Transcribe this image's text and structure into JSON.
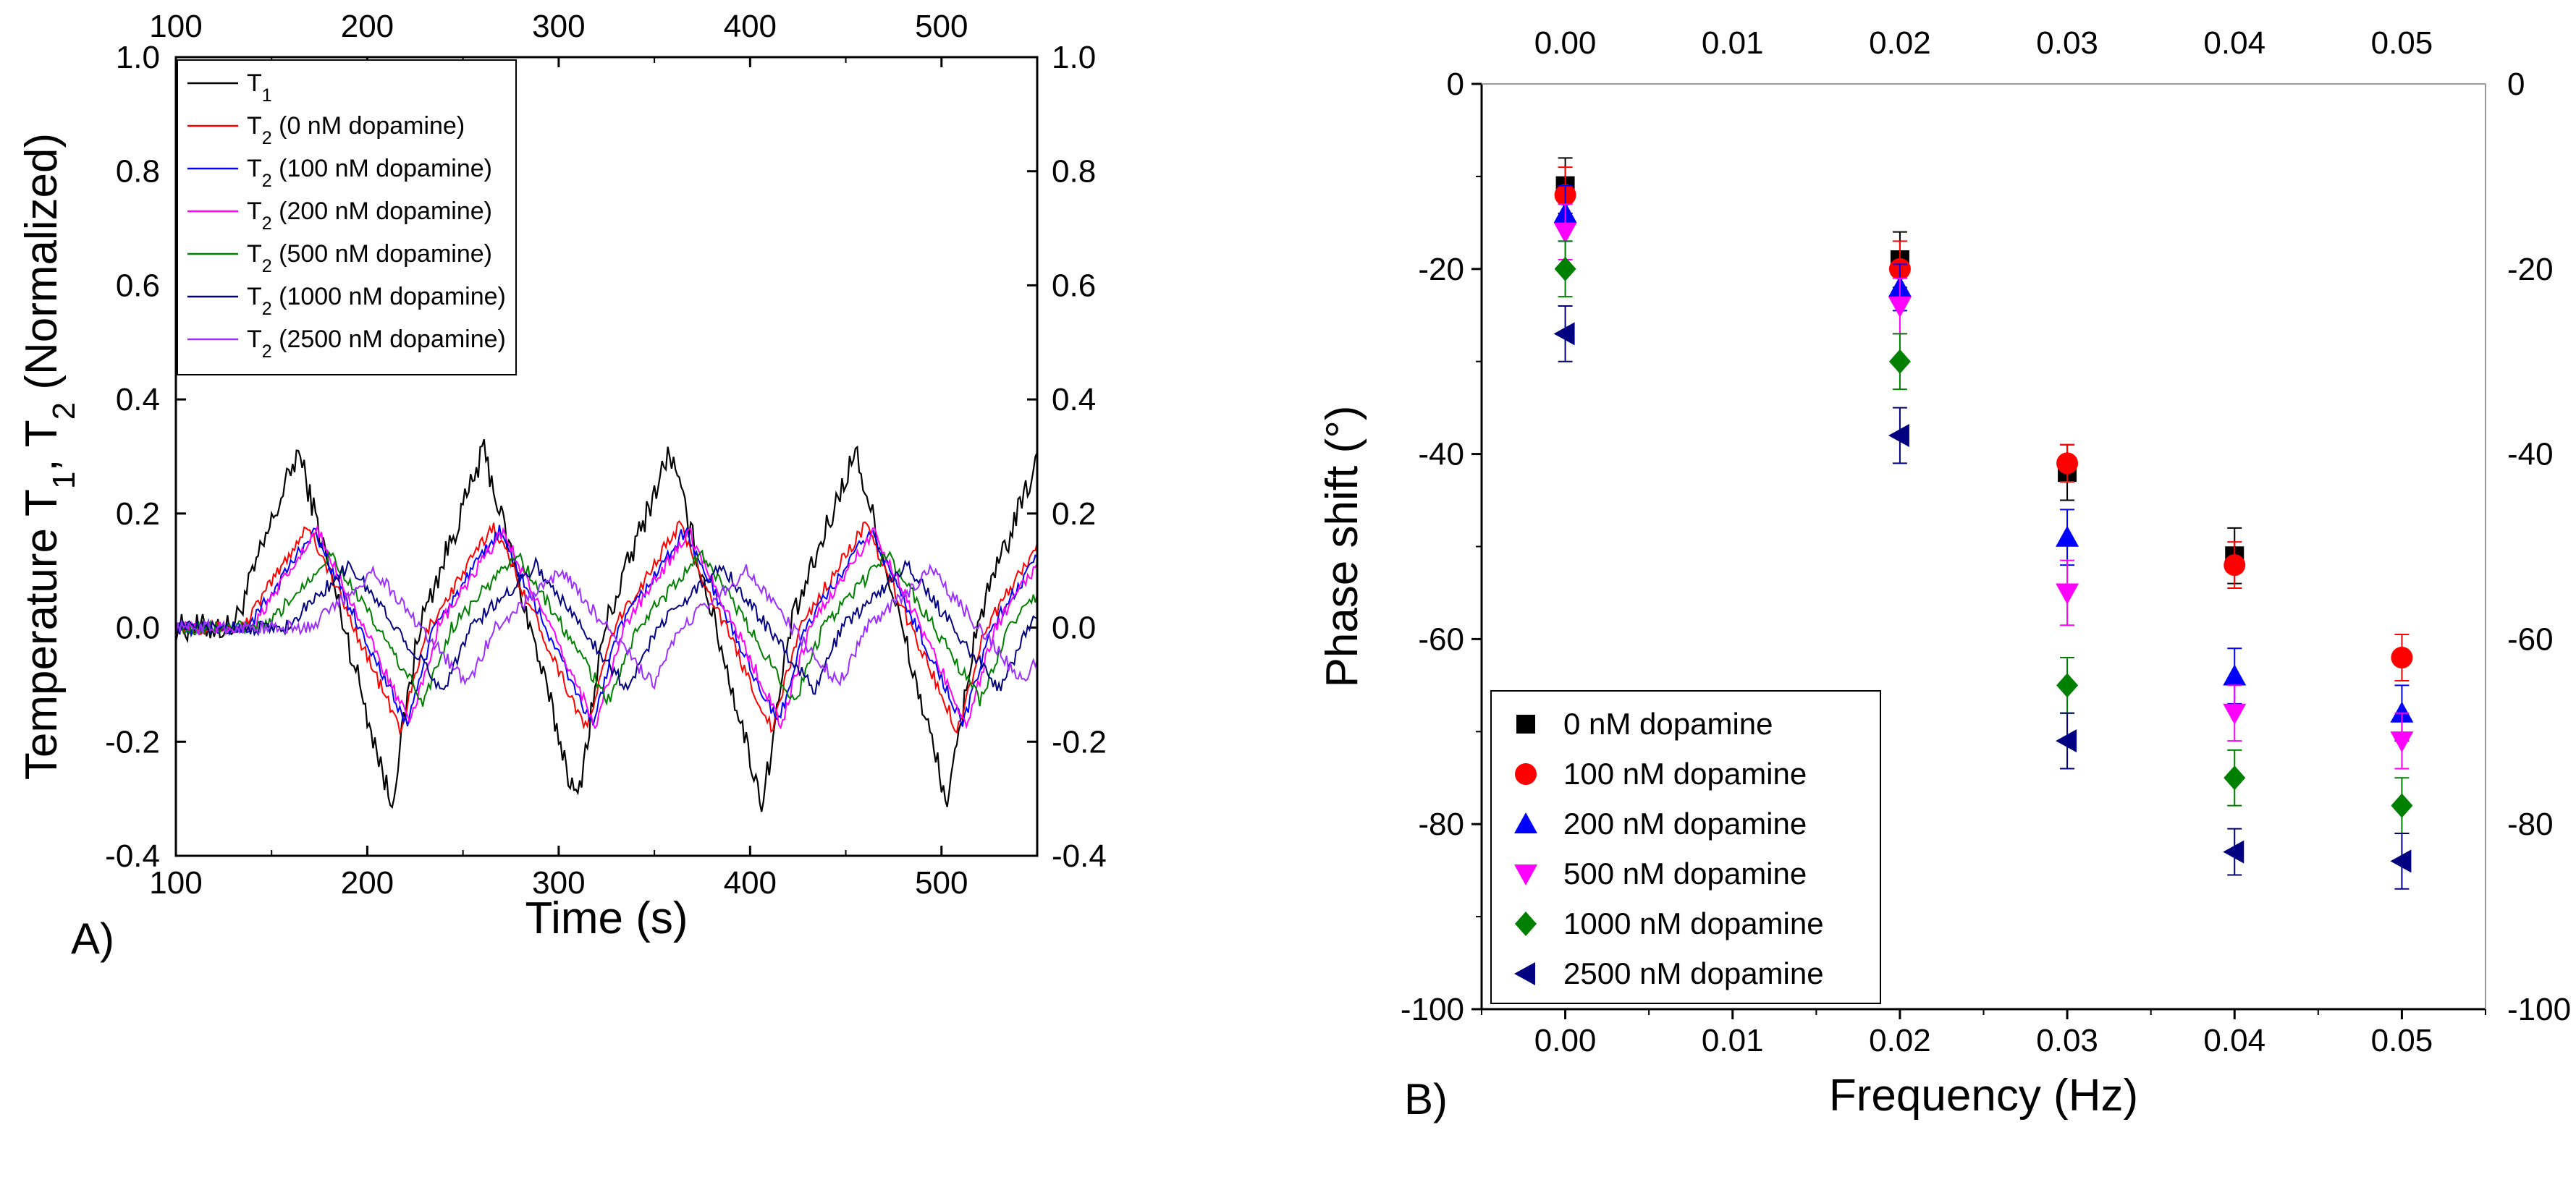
{
  "panels": {
    "a": {
      "label": "A)"
    },
    "b": {
      "label": "B)"
    }
  },
  "chart_data": [
    {
      "type": "line",
      "panel": "A)",
      "xlabel": "Time (s)",
      "ylabel": "Temperature T1, T2 (Normalized)",
      "ylabel_parts": {
        "t1_base": "Temperature T",
        "t1_sub": "1",
        "sep": ", T",
        "t2_sub": "2",
        "tail": " (Normalized)"
      },
      "xlim": [
        100,
        550
      ],
      "ylim": [
        -0.4,
        1.0
      ],
      "xticks": [
        100,
        200,
        300,
        400,
        500
      ],
      "yticks": [
        -0.4,
        -0.2,
        0.0,
        0.2,
        0.4,
        0.6,
        0.8,
        1.0
      ],
      "ytick_labels": [
        "-0.4",
        "-0.2",
        "0.0",
        "0.2",
        "0.4",
        "0.6",
        "0.8",
        "1.0"
      ],
      "mirror_axes": "top and right duplicate bottom and left ticks",
      "legend_position": "top-left",
      "signal": {
        "start_time": 130,
        "period": 97,
        "note": "triangle-like oscillation starting near t=130 s; curves reconstructed approximately"
      },
      "series": [
        {
          "name": "T1",
          "legend_base": "T",
          "legend_sub": "1",
          "legend_tail": "",
          "color": "#000000",
          "amplitude": 0.31,
          "delay": 0,
          "noise": 0.025
        },
        {
          "name": "T2 (0 nM dopamine)",
          "legend_base": "T",
          "legend_sub": "2",
          "legend_tail": " (0 nM dopamine)",
          "color": "#ff0000",
          "amplitude": 0.18,
          "delay": 5,
          "noise": 0.012
        },
        {
          "name": "T2 (100 nM dopamine)",
          "legend_base": "T",
          "legend_sub": "2",
          "legend_tail": " (100 nM dopamine)",
          "color": "#0000ff",
          "amplitude": 0.17,
          "delay": 8,
          "noise": 0.012
        },
        {
          "name": "T2 (200 nM dopamine)",
          "legend_base": "T",
          "legend_sub": "2",
          "legend_tail": " (200 nM dopamine)",
          "color": "#ff00ff",
          "amplitude": 0.17,
          "delay": 10,
          "noise": 0.012
        },
        {
          "name": "T2 (500 nM dopamine)",
          "legend_base": "T",
          "legend_sub": "2",
          "legend_tail": " (500 nM dopamine)",
          "color": "#008000",
          "amplitude": 0.13,
          "delay": 17,
          "noise": 0.012
        },
        {
          "name": "T2 (1000 nM dopamine)",
          "legend_base": "T",
          "legend_sub": "2",
          "legend_tail": " (1000 nM dopamine)",
          "color": "#000080",
          "amplitude": 0.11,
          "delay": 27,
          "noise": 0.012
        },
        {
          "name": "T2 (2500 nM dopamine)",
          "legend_base": "T",
          "legend_sub": "2",
          "legend_tail": " (2500 nM dopamine)",
          "color": "#9b30ff",
          "amplitude": 0.1,
          "delay": 40,
          "noise": 0.012
        }
      ]
    },
    {
      "type": "scatter",
      "panel": "B)",
      "xlabel": "Frequency (Hz)",
      "ylabel": "Phase shift (°)",
      "xlim": [
        -0.005,
        0.055
      ],
      "ylim": [
        -100,
        0
      ],
      "xticks": [
        0.0,
        0.01,
        0.02,
        0.03,
        0.04,
        0.05
      ],
      "xtick_labels": [
        "0.00",
        "0.01",
        "0.02",
        "0.03",
        "0.04",
        "0.05"
      ],
      "yticks": [
        -100,
        -80,
        -60,
        -40,
        -20,
        0
      ],
      "ytick_labels": [
        "-100",
        "-80",
        "-60",
        "-40",
        "-20",
        "0"
      ],
      "mirror_axes": "top and right duplicate bottom and left ticks",
      "legend_position": "bottom-left",
      "x": [
        0.0,
        0.02,
        0.03,
        0.04,
        0.05
      ],
      "series": [
        {
          "name": "0 nM dopamine",
          "marker": "square",
          "color": "#000000",
          "values": [
            -11,
            -19,
            -42,
            -51,
            null
          ],
          "errors": [
            3,
            3,
            3,
            3,
            0
          ]
        },
        {
          "name": "100 nM dopamine",
          "marker": "circle",
          "color": "#ff0000",
          "values": [
            -12,
            -20,
            -41,
            -52,
            -62
          ],
          "errors": [
            3,
            3,
            2,
            2.5,
            2.5
          ]
        },
        {
          "name": "200 nM dopamine",
          "marker": "triangle-up",
          "color": "#0000ff",
          "values": [
            -14,
            -22,
            -49,
            -64,
            -68
          ],
          "errors": [
            3,
            2.5,
            3,
            3,
            3
          ]
        },
        {
          "name": "500 nM dopamine",
          "marker": "triangle-down",
          "color": "#ff00ff",
          "values": [
            -16,
            -24,
            -55,
            -68,
            -71
          ],
          "errors": [
            3,
            3,
            3.5,
            3,
            3
          ]
        },
        {
          "name": "1000 nM dopamine",
          "marker": "diamond",
          "color": "#008000",
          "values": [
            -20,
            -30,
            -65,
            -75,
            -78
          ],
          "errors": [
            3,
            3,
            3,
            3,
            3
          ]
        },
        {
          "name": "2500 nM dopamine",
          "marker": "triangle-left",
          "color": "#000080",
          "values": [
            -27,
            -38,
            -71,
            -83,
            -84
          ],
          "errors": [
            3,
            3,
            3,
            2.5,
            3
          ]
        }
      ]
    }
  ]
}
